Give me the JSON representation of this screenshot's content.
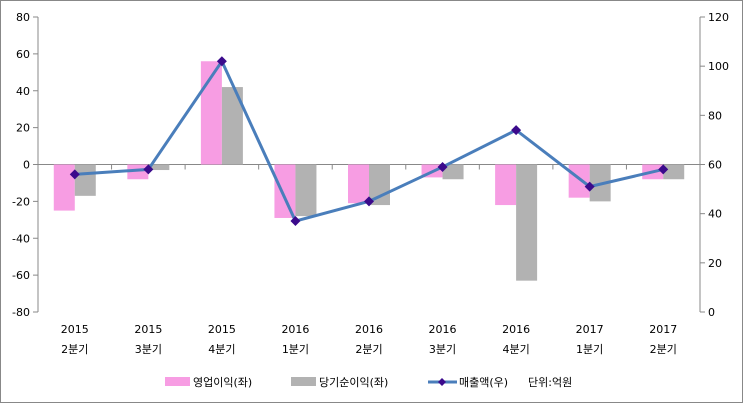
{
  "chart_data": {
    "type": "bar+line",
    "categories": [
      {
        "year": "2015",
        "quarter": "2분기"
      },
      {
        "year": "2015",
        "quarter": "3분기"
      },
      {
        "year": "2015",
        "quarter": "4분기"
      },
      {
        "year": "2016",
        "quarter": "1분기"
      },
      {
        "year": "2016",
        "quarter": "2분기"
      },
      {
        "year": "2016",
        "quarter": "3분기"
      },
      {
        "year": "2016",
        "quarter": "4분기"
      },
      {
        "year": "2017",
        "quarter": "1분기"
      },
      {
        "year": "2017",
        "quarter": "2분기"
      }
    ],
    "series": [
      {
        "name": "영업이익(좌)",
        "type": "bar",
        "axis": "left",
        "color": "#f79de3",
        "values": [
          -25,
          -8,
          56,
          -29,
          -21,
          -7,
          -22,
          -18,
          -8
        ]
      },
      {
        "name": "당기순이익(좌)",
        "type": "bar",
        "axis": "left",
        "color": "#b2b2b2",
        "values": [
          -17,
          -3,
          42,
          -28,
          -22,
          -8,
          -63,
          -20,
          -8
        ]
      },
      {
        "name": "매출액(우)",
        "type": "line",
        "axis": "right",
        "color": "#4a7ebb",
        "marker_color": "#3b0a8c",
        "values": [
          56,
          58,
          102,
          37,
          45,
          59,
          74,
          51,
          58
        ]
      }
    ],
    "left_axis": {
      "min": -80,
      "max": 80,
      "ticks": [
        "80",
        "60",
        "40",
        "20",
        "0",
        "-20",
        "-40",
        "-60",
        "-80"
      ]
    },
    "right_axis": {
      "min": 0,
      "max": 120,
      "ticks": [
        "120",
        "100",
        "80",
        "60",
        "40",
        "20",
        "0"
      ]
    },
    "unit_note": "단위:억원",
    "legend_placement": "bottom",
    "grid": false
  }
}
